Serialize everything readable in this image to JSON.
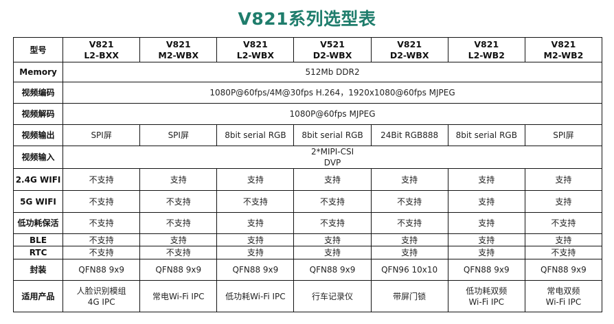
{
  "title": "V821系列选型表",
  "header": {
    "label": "型号",
    "models": [
      "V821\nL2-BXX",
      "V821\nM2-WBX",
      "V821\nL2-WBX",
      "V521\nD2-WBX",
      "V821\nD2-WBX",
      "V821\nL2-WB2",
      "V821\nM2-WB2"
    ]
  },
  "rows": [
    {
      "label": "Memory",
      "span": "512Mb DDR2"
    },
    {
      "label": "视频编码",
      "span": "1080P@60fps/4M@30fps H.264，1920x1080@60fps MJPEG"
    },
    {
      "label": "视频解码",
      "span": "1080P@60fps MJPEG"
    },
    {
      "label": "视频输出",
      "cells": [
        "SPI屏",
        "SPI屏",
        "8bit serial RGB",
        "8bit serial RGB",
        "24Bit RGB888",
        "8bit serial RGB",
        "SPI屏"
      ]
    },
    {
      "label": "视频输入",
      "span": "2*MIPI-CSI\nDVP"
    },
    {
      "label": "2.4G WIFI",
      "cells": [
        "不支持",
        "支持",
        "支持",
        "支持",
        "支持",
        "支持",
        "支持"
      ]
    },
    {
      "label": "5G WIFI",
      "cells": [
        "不支持",
        "不支持",
        "不支持",
        "不支持",
        "不支持",
        "支持",
        "支持"
      ]
    },
    {
      "label": "低功耗保活",
      "cells": [
        "不支持",
        "不支持",
        "支持",
        "不支持",
        "不支持",
        "支持",
        "不支持"
      ]
    },
    {
      "label": "BLE",
      "cells": [
        "不支持",
        "支持",
        "支持",
        "支持",
        "支持",
        "支持",
        "支持"
      ]
    },
    {
      "label": "RTC",
      "cells": [
        "不支持",
        "不支持",
        "支持",
        "支持",
        "支持",
        "支持",
        "不支持"
      ]
    },
    {
      "label": "封装",
      "cells": [
        "QFN88 9x9",
        "QFN88 9x9",
        "QFN88 9x9",
        "QFN88 9x9",
        "QFN96 10x10",
        "QFN88 9x9",
        "QFN88 9x9"
      ]
    },
    {
      "label": "适用产品",
      "cells": [
        "人脸识别模组\n4G IPC",
        "常电Wi-Fi IPC",
        "低功耗Wi-Fi IPC",
        "行车记录仪",
        "带屏门锁",
        "低功耗双频\nWi-Fi IPC",
        "常电双频\nWi-Fi IPC"
      ]
    }
  ]
}
